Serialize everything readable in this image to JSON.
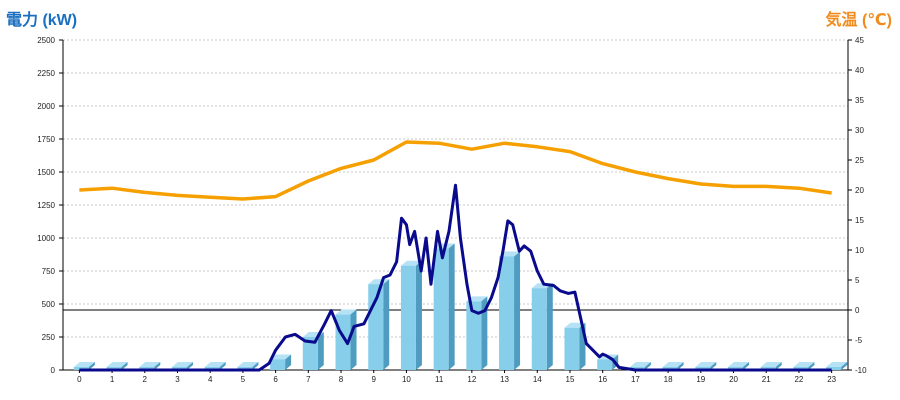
{
  "chart_data": {
    "type": "bar",
    "y_left_label": "電力 (kW)",
    "y_right_label": "気温 (℃)",
    "x": [
      "0",
      "1",
      "2",
      "3",
      "4",
      "5",
      "6",
      "7",
      "8",
      "9",
      "10",
      "11",
      "12",
      "13",
      "14",
      "15",
      "16",
      "17",
      "18",
      "19",
      "20",
      "21",
      "22",
      "23"
    ],
    "y_left_ticks": [
      "0",
      "250",
      "500",
      "750",
      "1000",
      "1250",
      "1500",
      "1750",
      "2000",
      "2250",
      "2500"
    ],
    "y_right_ticks": [
      "-10",
      "-5",
      "0",
      "5",
      "10",
      "15",
      "20",
      "25",
      "30",
      "35",
      "40",
      "45"
    ],
    "ylim_left": [
      0,
      2500
    ],
    "ylim_right": [
      -10,
      45
    ],
    "grid": true,
    "series": [
      {
        "type": "bar",
        "axis": "left",
        "color": "#87ceeb",
        "values": [
          0,
          0,
          0,
          0,
          0,
          0,
          80,
          250,
          420,
          650,
          790,
          920,
          520,
          860,
          620,
          320,
          80,
          0,
          0,
          0,
          0,
          0,
          0,
          0
        ]
      },
      {
        "type": "line",
        "axis": "left",
        "color": "#0a0a8c",
        "x": [
          0,
          1,
          2,
          3,
          4,
          5,
          5.5,
          5.8,
          6,
          6.3,
          6.6,
          6.9,
          7.2,
          7.5,
          7.7,
          7.95,
          8.2,
          8.4,
          8.7,
          8.9,
          9.1,
          9.3,
          9.5,
          9.7,
          9.85,
          10,
          10.1,
          10.25,
          10.45,
          10.6,
          10.75,
          10.95,
          11.1,
          11.3,
          11.5,
          11.65,
          11.85,
          12,
          12.2,
          12.4,
          12.6,
          12.8,
          12.95,
          13.1,
          13.25,
          13.45,
          13.6,
          13.8,
          14,
          14.2,
          14.5,
          14.7,
          14.95,
          15.15,
          15.5,
          15.7,
          15.9,
          16,
          16.1,
          16.3,
          16.5,
          17,
          18,
          19,
          20,
          21,
          22,
          23
        ],
        "values": [
          0,
          0,
          0,
          0,
          0,
          0,
          0,
          50,
          150,
          250,
          270,
          220,
          210,
          350,
          450,
          300,
          200,
          330,
          350,
          450,
          550,
          700,
          720,
          820,
          1150,
          1100,
          950,
          1050,
          750,
          1000,
          650,
          1050,
          850,
          1050,
          1400,
          1000,
          650,
          450,
          430,
          450,
          550,
          700,
          900,
          1130,
          1100,
          900,
          940,
          900,
          750,
          650,
          640,
          600,
          580,
          590,
          200,
          150,
          100,
          120,
          110,
          80,
          20,
          0,
          0,
          0,
          0,
          0,
          0,
          0
        ]
      },
      {
        "type": "line",
        "axis": "right",
        "color": "#f5a000",
        "x": [
          0,
          1,
          2,
          3,
          4,
          5,
          6,
          7,
          8,
          9,
          10,
          11,
          12,
          13,
          14,
          15,
          16,
          17,
          18,
          19,
          20,
          21,
          22,
          23
        ],
        "values": [
          20,
          20.3,
          19.6,
          19.1,
          18.8,
          18.5,
          18.9,
          21.5,
          23.6,
          25,
          28,
          27.8,
          26.8,
          27.8,
          27.2,
          26.4,
          24.4,
          23,
          21.9,
          21,
          20.6,
          20.6,
          20.3,
          19.5
        ]
      }
    ]
  }
}
